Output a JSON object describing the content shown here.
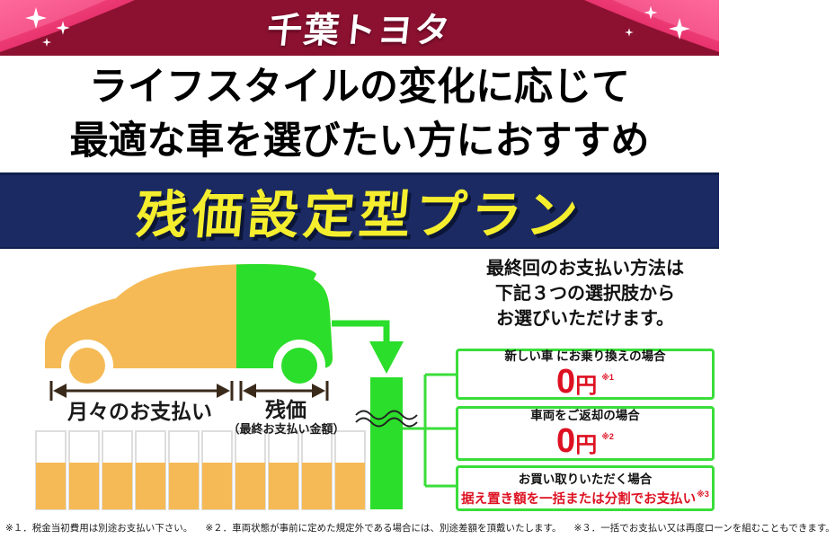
{
  "header": {
    "brand": "千葉トヨタ"
  },
  "headline": {
    "line1": "ライフスタイルの変化に応じて",
    "line2": "最適な車を選びたい方におすすめ"
  },
  "plan_banner": {
    "title": "残価設定型プラン"
  },
  "diagram": {
    "monthly_arrow_label": "月々のお支払い",
    "residual_arrow_label": "残価",
    "residual_arrow_sublabel": "（最終お支払い金額）",
    "monthly_bar_count": 10,
    "colors": {
      "monthly_orange": "#F5BA55",
      "residual_green": "#2BDE2B"
    }
  },
  "options_panel": {
    "intro_line1": "最終回のお支払い方法は",
    "intro_line2": "下記３つの選択肢から",
    "intro_line3": "お選びいただけます。",
    "options": [
      {
        "condition": "新しい車 にお乗り換えの場合",
        "amount": "0",
        "unit": "円",
        "note_ref": "※1"
      },
      {
        "condition": "車両をご返却の場合",
        "amount": "0",
        "unit": "円",
        "note_ref": "※2"
      },
      {
        "condition": "お買い取りいただく場合",
        "payment": "据え置き額を一括または分割でお支払い",
        "note_ref": "※3"
      }
    ]
  },
  "footnotes": {
    "note1": "※１．税金当初費用は別途お支払い下さい。",
    "note2": "※２．車両状態が事前に定めた規定外である場合には、別途差額を頂戴いたします。",
    "note3": "※３．一括でお支払い又は再度ローンを組むこともできます。"
  },
  "colors": {
    "header_maroon": "#8C1130",
    "ribbon_pink": "#E8336E",
    "banner_navy": "#1B2A63",
    "banner_yellow": "#F5EE2E",
    "accent_red": "#DD1122",
    "box_border_green": "#3ADD3A",
    "arrow_brown": "#3A2A1A"
  }
}
